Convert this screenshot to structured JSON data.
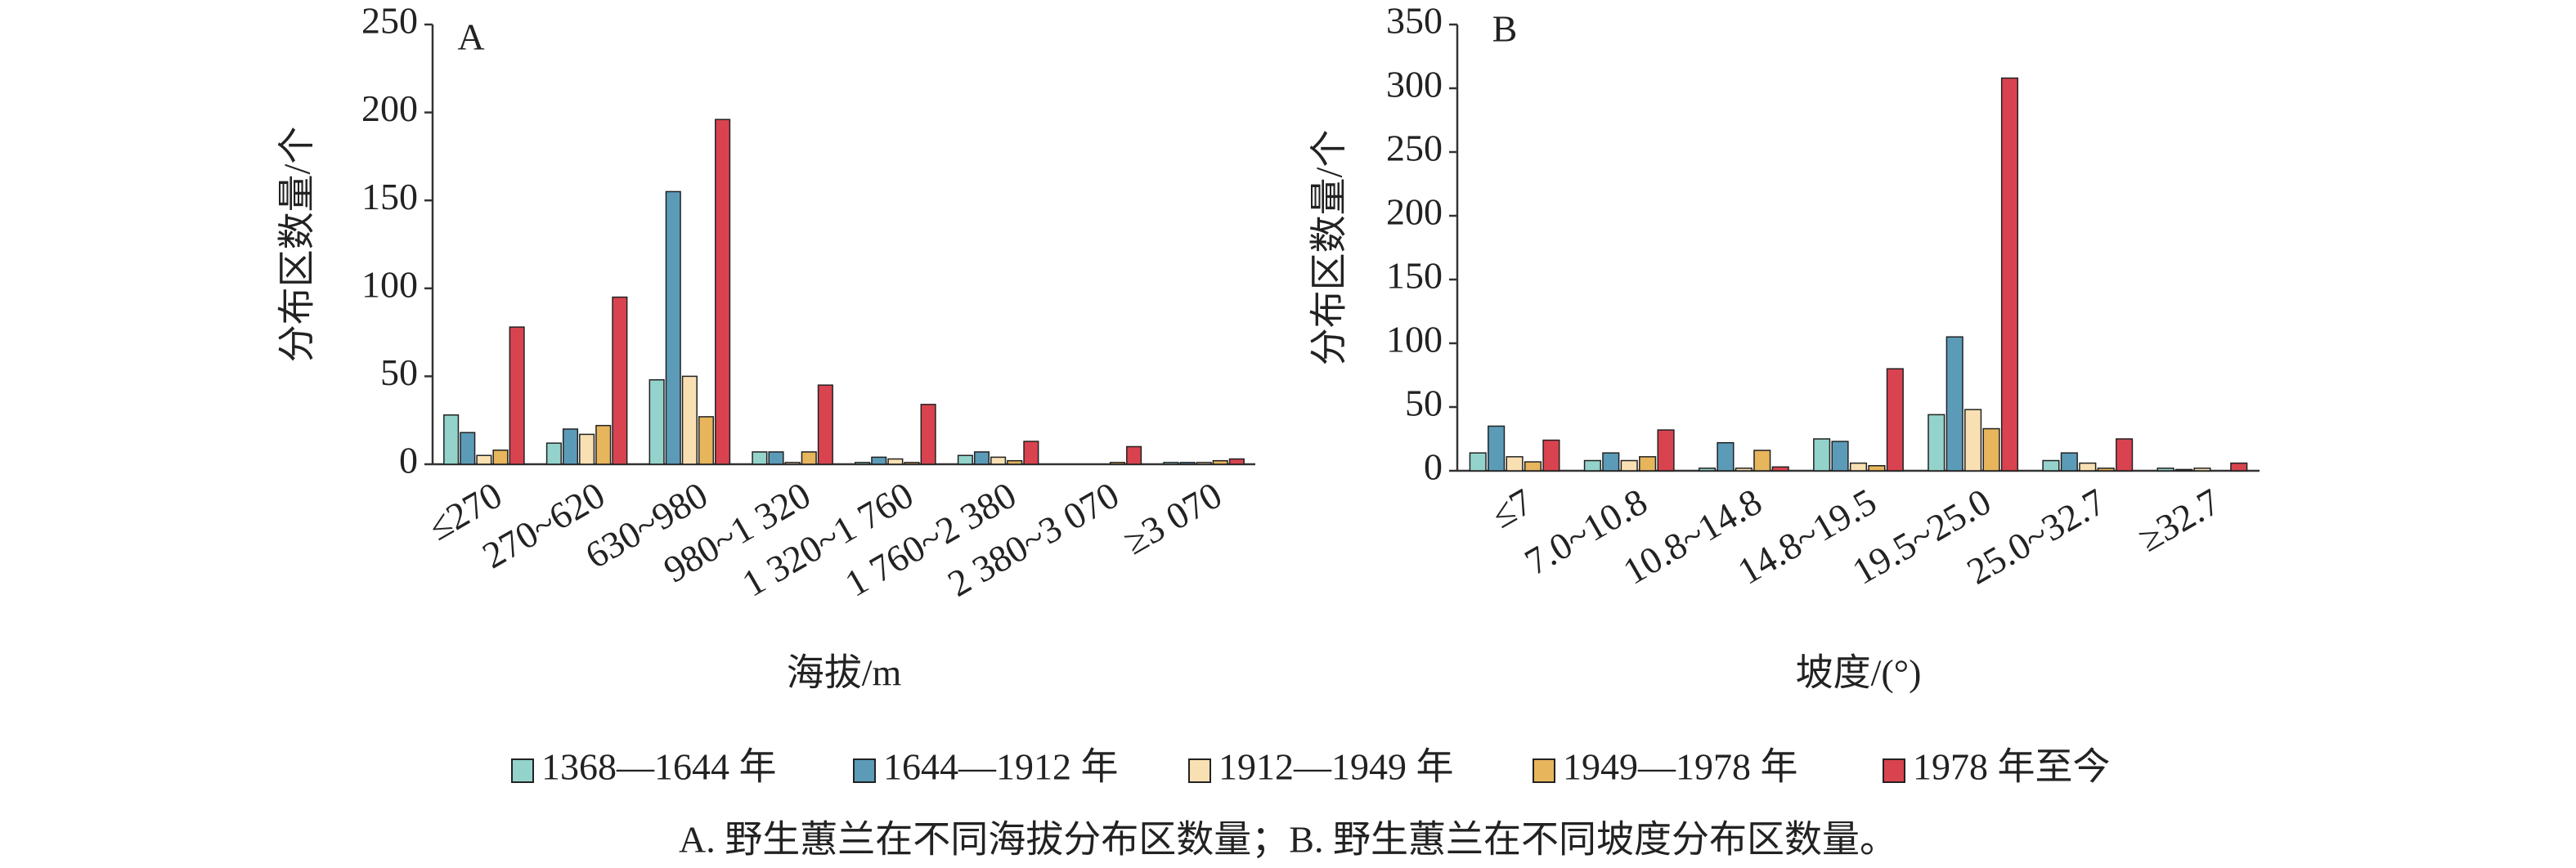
{
  "chart_data": [
    {
      "type": "bar",
      "panel_label": "A",
      "ylabel": "分布区数量/个",
      "xlabel": "海拔/m",
      "categories": [
        "≤270",
        "270~620",
        "630~980",
        "980~1 320",
        "1 320~1 760",
        "1 760~2 380",
        "2 380~3 070",
        "≥3 070"
      ],
      "series": [
        {
          "name": "1368—1644 年",
          "color": "#93d3cb",
          "values": [
            28,
            12,
            48,
            7,
            1,
            5,
            0,
            1
          ]
        },
        {
          "name": "1644—1912 年",
          "color": "#5b9bb8",
          "values": [
            18,
            20,
            155,
            7,
            4,
            7,
            0,
            1
          ]
        },
        {
          "name": "1912—1949 年",
          "color": "#f9e0b3",
          "values": [
            5,
            17,
            50,
            1,
            3,
            4,
            0,
            1
          ]
        },
        {
          "name": "1949—1978 年",
          "color": "#e7b55c",
          "values": [
            8,
            22,
            27,
            7,
            1,
            2,
            1,
            2
          ]
        },
        {
          "name": "1978 年至今",
          "color": "#d8434f",
          "values": [
            78,
            95,
            196,
            45,
            34,
            13,
            10,
            3
          ]
        }
      ],
      "ylim": [
        0,
        250
      ],
      "yticks": [
        0,
        50,
        100,
        150,
        200,
        250
      ]
    },
    {
      "type": "bar",
      "panel_label": "B",
      "ylabel": "分布区数量/个",
      "xlabel": "坡度/(°)",
      "categories": [
        "≤7",
        "7.0~10.8",
        "10.8~14.8",
        "14.8~19.5",
        "19.5~25.0",
        "25.0~32.7",
        "≥32.7"
      ],
      "series": [
        {
          "color": "#93d3cb",
          "values": [
            14,
            8,
            2,
            25,
            44,
            8,
            2
          ]
        },
        {
          "color": "#5b9bb8",
          "values": [
            35,
            14,
            22,
            23,
            105,
            14,
            1
          ]
        },
        {
          "color": "#f9e0b3",
          "values": [
            11,
            8,
            2,
            6,
            48,
            6,
            2
          ]
        },
        {
          "color": "#e7b55c",
          "values": [
            7,
            11,
            16,
            4,
            33,
            2,
            0
          ]
        },
        {
          "color": "#d8434f",
          "values": [
            24,
            32,
            3,
            80,
            308,
            25,
            6
          ]
        }
      ],
      "ylim": [
        0,
        350
      ],
      "yticks": [
        0,
        50,
        100,
        150,
        200,
        250,
        300,
        350
      ]
    }
  ],
  "caption": "A. 野生蕙兰在不同海拔分布区数量；B. 野生蕙兰在不同坡度分布区数量。"
}
